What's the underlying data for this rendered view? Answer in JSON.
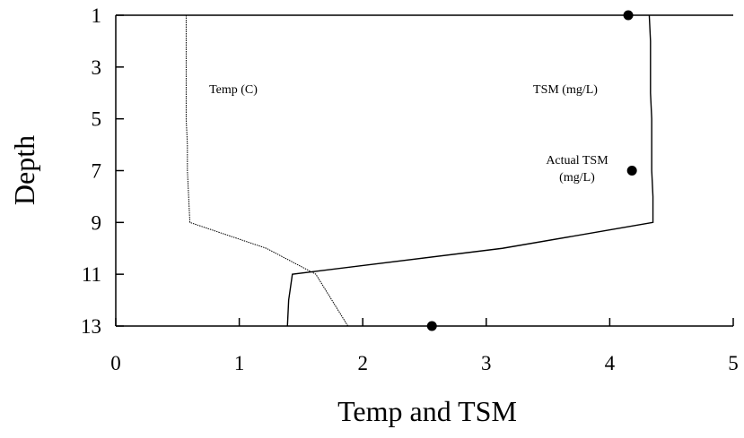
{
  "chart_data": {
    "type": "line",
    "x_label": "Temp and TSM",
    "y_label": "Depth",
    "xlim": [
      0,
      5
    ],
    "xticks": [
      0,
      1,
      2,
      3,
      4,
      5
    ],
    "ylim": [
      1,
      13
    ],
    "yticks": [
      1,
      3,
      5,
      7,
      9,
      11,
      13
    ],
    "y_inverted": true,
    "series": [
      {
        "name": "Temp (C)",
        "style": "dotted",
        "color": "#000000",
        "depth": [
          1,
          2,
          3,
          4,
          5,
          6,
          7,
          8,
          9,
          10,
          11,
          12,
          13
        ],
        "values": [
          0.57,
          0.57,
          0.57,
          0.57,
          0.57,
          0.58,
          0.58,
          0.59,
          0.6,
          1.22,
          1.62,
          1.75,
          1.88
        ]
      },
      {
        "name": "TSM (mg/L)",
        "style": "solid",
        "color": "#000000",
        "depth": [
          1,
          2,
          3,
          4,
          5,
          6,
          7,
          8,
          9,
          10,
          11,
          12,
          13
        ],
        "values": [
          4.32,
          4.33,
          4.33,
          4.33,
          4.34,
          4.34,
          4.34,
          4.35,
          4.35,
          3.13,
          1.43,
          1.4,
          1.39
        ]
      },
      {
        "name": "Actual TSM (mg/L)",
        "style": "points",
        "color": "#000000",
        "depth": [
          1,
          7,
          13
        ],
        "values": [
          4.15,
          4.18,
          2.56
        ]
      }
    ]
  }
}
